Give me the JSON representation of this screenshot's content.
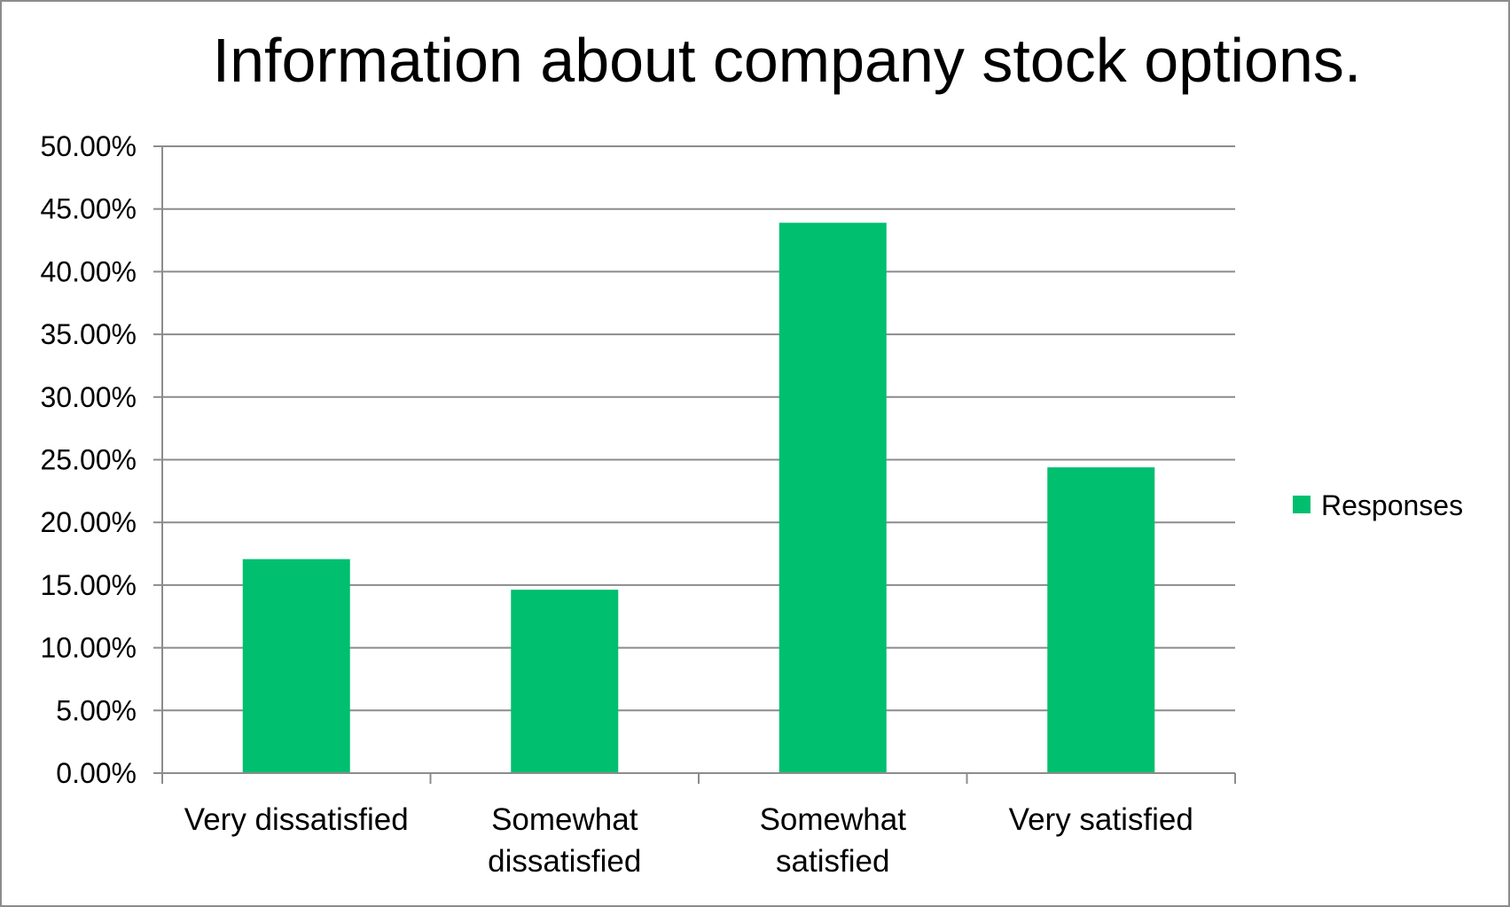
{
  "chart_data": {
    "type": "bar",
    "title": "Information about company stock options.",
    "categories": [
      [
        "Very dissatisfied"
      ],
      [
        "Somewhat",
        "dissatisfied"
      ],
      [
        "Somewhat",
        "satisfied"
      ],
      [
        "Very satisfied"
      ]
    ],
    "series": [
      {
        "name": "Responses",
        "color": "#00bf6f",
        "values": [
          17.07,
          14.63,
          43.9,
          24.39
        ]
      }
    ],
    "y_ticks": [
      "0.00%",
      "5.00%",
      "10.00%",
      "15.00%",
      "20.00%",
      "25.00%",
      "30.00%",
      "35.00%",
      "40.00%",
      "45.00%",
      "50.00%"
    ],
    "ylim": [
      0,
      50
    ],
    "ystep": 5,
    "grid": true,
    "legend_position": "right",
    "colors": {
      "gridline": "#8c8c8c",
      "axis": "#8c8c8c",
      "frame": "#8c8c8c"
    }
  }
}
